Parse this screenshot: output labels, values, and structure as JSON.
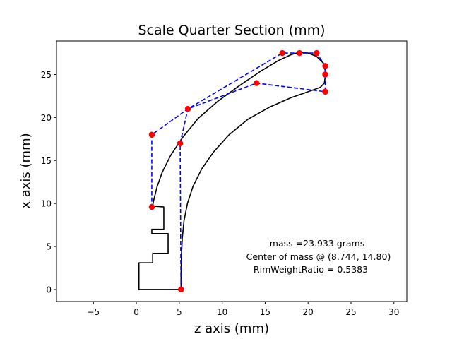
{
  "chart_data": {
    "type": "line",
    "title": "Scale Quarter Section (mm)",
    "xlabel": "z axis (mm)",
    "ylabel": "x axis (mm)",
    "xlim": [
      -9.3,
      31.5
    ],
    "ylim": [
      -1.4,
      28.9
    ],
    "xticks": [
      -5,
      0,
      5,
      10,
      15,
      20,
      25,
      30
    ],
    "yticks": [
      0,
      5,
      10,
      15,
      20,
      25
    ],
    "xtick_labels": [
      "−5",
      "0",
      "5",
      "10",
      "15",
      "20",
      "25",
      "30"
    ],
    "ytick_labels": [
      "0",
      "5",
      "10",
      "15",
      "20",
      "25"
    ],
    "grid": false,
    "colors": {
      "profile": "#000000",
      "control": "#0000ff",
      "points": "#ff0000"
    },
    "series": [
      {
        "kind": "profile-inner",
        "points": [
          [
            5.2,
            0
          ],
          [
            5.21,
            2
          ],
          [
            5.25,
            4
          ],
          [
            5.35,
            6
          ],
          [
            5.55,
            8
          ],
          [
            5.95,
            10
          ],
          [
            6.6,
            12
          ],
          [
            7.6,
            14
          ],
          [
            9.0,
            16
          ],
          [
            10.8,
            18
          ],
          [
            13.0,
            19.8
          ],
          [
            15.5,
            21.2
          ],
          [
            18,
            22.3
          ],
          [
            20,
            23.0
          ],
          [
            21.4,
            23.5
          ],
          [
            21.9,
            24.0
          ]
        ]
      },
      {
        "kind": "profile-outer",
        "points": [
          [
            21.9,
            24.0
          ],
          [
            22.05,
            25.2
          ],
          [
            21.8,
            26.3
          ],
          [
            21.0,
            27.1
          ],
          [
            20.0,
            27.5
          ],
          [
            19.0,
            27.6
          ],
          [
            18.0,
            27.3
          ],
          [
            16.5,
            26.6
          ],
          [
            14.5,
            25.4
          ],
          [
            12,
            23.7
          ],
          [
            9.5,
            21.9
          ],
          [
            7.2,
            19.9
          ],
          [
            5.4,
            17.7
          ],
          [
            4.0,
            15.6
          ],
          [
            3.0,
            13.6
          ],
          [
            2.4,
            11.9
          ],
          [
            2.0,
            10.3
          ],
          [
            1.9,
            9.7
          ]
        ]
      },
      {
        "kind": "base-stair",
        "points": [
          [
            1.9,
            9.7
          ],
          [
            3.2,
            9.6
          ],
          [
            3.2,
            7.0
          ],
          [
            1.8,
            7.0
          ],
          [
            1.8,
            6.5
          ],
          [
            3.7,
            6.5
          ],
          [
            3.7,
            4.2
          ],
          [
            1.9,
            4.2
          ],
          [
            1.9,
            3.1
          ],
          [
            0.3,
            3.1
          ],
          [
            0.3,
            0
          ],
          [
            5.2,
            0
          ]
        ]
      },
      {
        "kind": "control-polygon",
        "points": [
          [
            5.2,
            0
          ],
          [
            5.1,
            17
          ],
          [
            6,
            21
          ],
          [
            14,
            24
          ],
          [
            22,
            23
          ],
          [
            22,
            25
          ],
          [
            22,
            26
          ],
          [
            21,
            27.5
          ],
          [
            19,
            27.5
          ],
          [
            17,
            27.5
          ],
          [
            6,
            21
          ],
          [
            1.8,
            18
          ],
          [
            1.8,
            9.6
          ]
        ]
      }
    ],
    "control_points": [
      [
        5.2,
        0
      ],
      [
        5.1,
        17
      ],
      [
        6,
        21
      ],
      [
        14,
        24
      ],
      [
        22,
        23
      ],
      [
        22,
        25
      ],
      [
        22,
        26
      ],
      [
        21,
        27.5
      ],
      [
        19,
        27.5
      ],
      [
        17,
        27.5
      ],
      [
        1.8,
        18
      ],
      [
        1.8,
        9.6
      ]
    ],
    "annotations": [
      "mass =23.933 grams",
      "Center of mass @ (8.744, 14.80)",
      "RimWeightRatio = 0.5383"
    ]
  }
}
